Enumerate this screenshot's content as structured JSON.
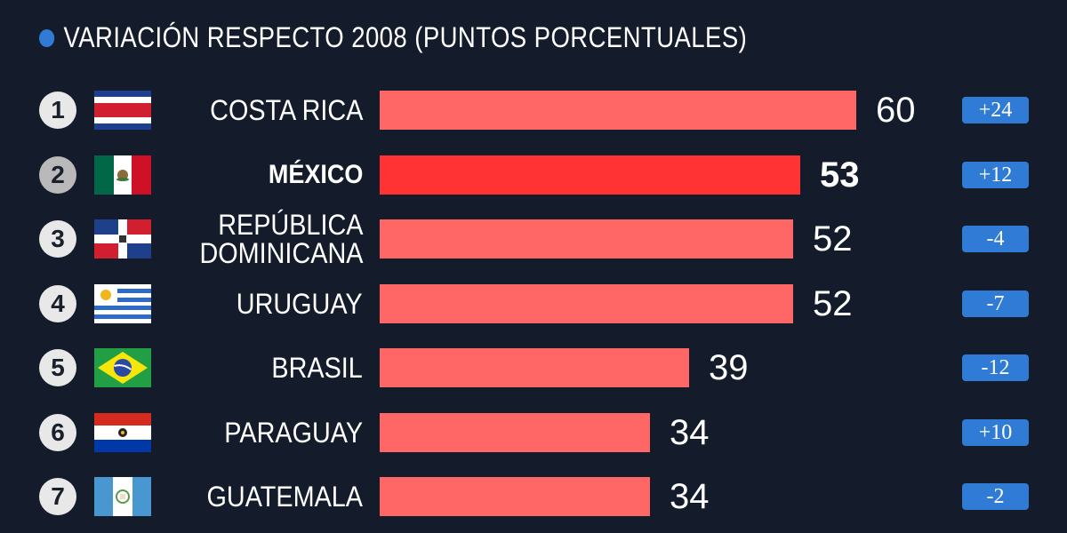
{
  "legend": {
    "label": "VARIACIÓN RESPECTO 2008 (PUNTOS PORCENTUALES)"
  },
  "colors": {
    "bar": "#ff6666",
    "bar_highlight": "#ff3333",
    "badge": "#2f7bd6",
    "background": "#141c2b"
  },
  "chart_data": {
    "type": "bar",
    "orientation": "horizontal",
    "categories": [
      "COSTA RICA",
      "MÉXICO",
      "REPÚBLICA DOMINICANA",
      "URUGUAY",
      "BRASIL",
      "PARAGUAY",
      "GUATEMALA"
    ],
    "values": [
      60,
      53,
      52,
      52,
      39,
      34,
      34
    ],
    "ranks": [
      "1",
      "2",
      "3",
      "4",
      "5",
      "6",
      "7"
    ],
    "changes": [
      "+24",
      "+12",
      "-4",
      "-7",
      "-12",
      "+10",
      "-2"
    ],
    "flags": [
      "costa-rica-flag",
      "mexico-flag",
      "dominican-republic-flag",
      "uruguay-flag",
      "brazil-flag",
      "paraguay-flag",
      "guatemala-flag"
    ],
    "highlight": "MÉXICO",
    "xlim": [
      0,
      60
    ]
  },
  "rows": [
    {
      "rank": "1",
      "name_lines": [
        "COSTA RICA"
      ],
      "value": "60",
      "change": "+24"
    },
    {
      "rank": "2",
      "name_lines": [
        "MÉXICO"
      ],
      "value": "53",
      "change": "+12"
    },
    {
      "rank": "3",
      "name_lines": [
        "REPÚBLICA",
        "DOMINICANA"
      ],
      "value": "52",
      "change": "-4"
    },
    {
      "rank": "4",
      "name_lines": [
        "URUGUAY"
      ],
      "value": "52",
      "change": "-7"
    },
    {
      "rank": "5",
      "name_lines": [
        "BRASIL"
      ],
      "value": "39",
      "change": "-12"
    },
    {
      "rank": "6",
      "name_lines": [
        "PARAGUAY"
      ],
      "value": "34",
      "change": "+10"
    },
    {
      "rank": "7",
      "name_lines": [
        "GUATEMALA"
      ],
      "value": "34",
      "change": "-2"
    }
  ]
}
